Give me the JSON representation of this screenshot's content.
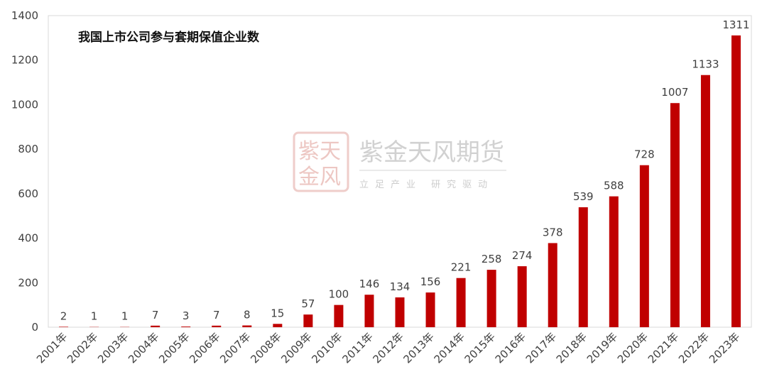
{
  "chart_data": {
    "type": "bar",
    "title": "我国上市公司参与套期保值企业数",
    "categories": [
      "2001年",
      "2002年",
      "2003年",
      "2004年",
      "2005年",
      "2006年",
      "2007年",
      "2008年",
      "2009年",
      "2010年",
      "2011年",
      "2012年",
      "2013年",
      "2014年",
      "2015年",
      "2016年",
      "2017年",
      "2018年",
      "2019年",
      "2020年",
      "2021年",
      "2022年",
      "2023年"
    ],
    "values": [
      2,
      1,
      1,
      7,
      3,
      7,
      8,
      15,
      57,
      100,
      146,
      134,
      156,
      221,
      258,
      274,
      378,
      539,
      588,
      728,
      1007,
      1133,
      1311
    ],
    "y_ticks": [
      0,
      200,
      400,
      600,
      800,
      1000,
      1200,
      1400
    ],
    "ylim": [
      0,
      1400
    ],
    "xlabel": "",
    "ylabel": "",
    "grid": false,
    "legend": "none",
    "bar_color": "#c00000"
  },
  "watermark": {
    "name": "紫金天风期货",
    "slogan": "立足产业 研究驱动",
    "seal_text": "紫天金风",
    "seal_color": "#c0392b"
  }
}
